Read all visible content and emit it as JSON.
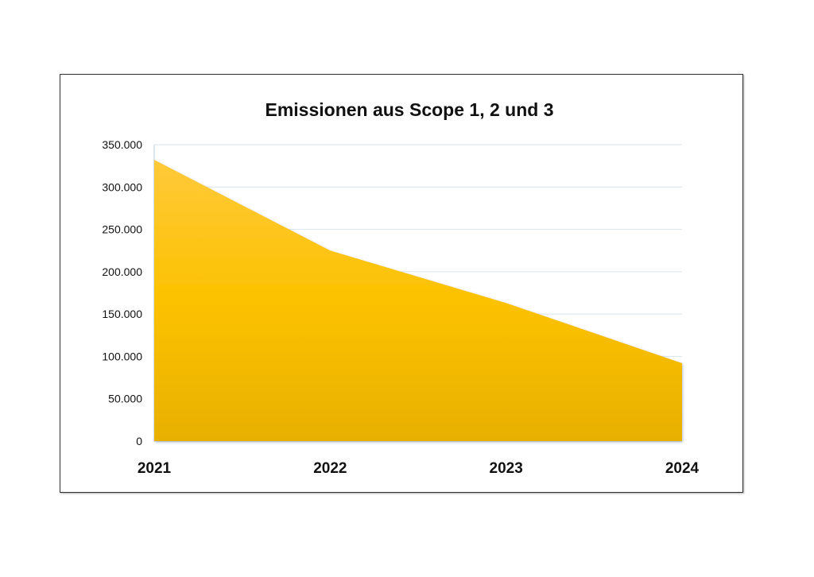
{
  "chart_data": {
    "type": "area",
    "title": "Emissionen aus Scope 1, 2 und 3",
    "xlabel": "",
    "ylabel": "",
    "categories": [
      "2021",
      "2022",
      "2023",
      "2024"
    ],
    "series": [
      {
        "values": [
          332000,
          225000,
          163000,
          92000
        ]
      }
    ],
    "ylim": [
      0,
      350000
    ],
    "yticks": [
      0,
      50000,
      100000,
      150000,
      200000,
      250000,
      300000,
      350000
    ],
    "ytick_labels": [
      "0",
      "50.000",
      "100.000",
      "150.000",
      "200.000",
      "250.000",
      "300.000",
      "350.000"
    ],
    "grid": true,
    "legend": "none",
    "colors": {
      "fill_top": "#ffc93a",
      "fill_mid": "#fcc200",
      "fill_bottom": "#e8b000",
      "gridline": "#d6e4f0"
    }
  }
}
